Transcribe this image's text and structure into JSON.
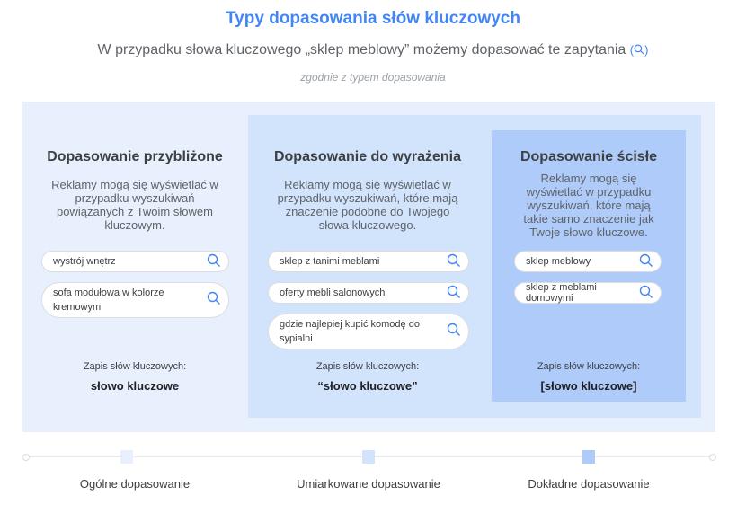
{
  "title": "Typy dopasowania słów kluczowych",
  "subtitle": "W przypadku słowa kluczowego „sklep meblowy” możemy dopasować te zapytania",
  "subtitle_icon": "search-icon",
  "note": "zgodnie z typem dopasowania",
  "colors": {
    "broad": "#e8f0fe",
    "phrase": "#d2e3fc",
    "exact": "#aecbfa",
    "accent": "#4285f4"
  },
  "columns": [
    {
      "heading": "Dopasowanie przybliżone",
      "description": "Reklamy mogą się wyświetlać w przypadku wyszukiwań powiązanych z Twoim słowem kluczowym.",
      "queries": [
        "wystrój wnętrz",
        "sofa modułowa w kolorze kremowym"
      ],
      "notation_label": "Zapis słów kluczowych:",
      "notation": "słowo kluczowe"
    },
    {
      "heading": "Dopasowanie do wyrażenia",
      "description": "Reklamy mogą się wyświetlać w przypadku wyszukiwań, które mają znaczenie podobne do Twojego słowa kluczowego.",
      "queries": [
        "sklep z tanimi meblami",
        "oferty mebli salonowych",
        "gdzie najlepiej kupić komodę do sypialni"
      ],
      "notation_label": "Zapis słów kluczowych:",
      "notation": "“słowo kluczowe”"
    },
    {
      "heading": "Dopasowanie ścisłe",
      "description": "Reklamy mogą się wyświetlać w przypadku wyszukiwań, które mają takie samo znaczenie jak Twoje słowo kluczowe.",
      "queries": [
        "sklep meblowy",
        "sklep z meblami domowymi"
      ],
      "notation_label": "Zapis słów kluczowych:",
      "notation": "[słowo kluczowe]"
    }
  ],
  "legend": [
    "Ogólne dopasowanie",
    "Umiarkowane dopasowanie",
    "Dokładne dopasowanie"
  ]
}
